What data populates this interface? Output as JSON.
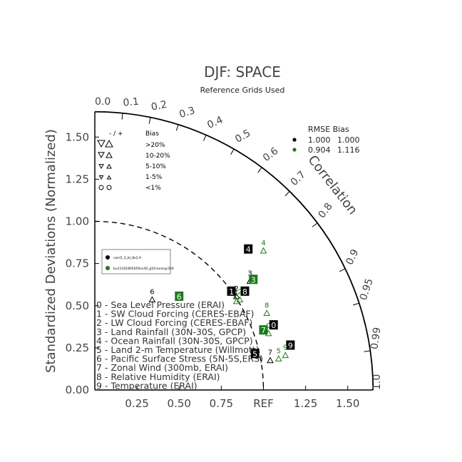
{
  "chart_data": {
    "type": "taylor-diagram",
    "title": "DJF: SPACE",
    "subtitle": "Reference Grids Used",
    "y_axis_label": "Standardized Deviations (Normalized)",
    "x_ticks": [
      "0.25",
      "0.50",
      "0.75",
      "REF",
      "1.25",
      "1.50"
    ],
    "y_ticks": [
      "0.00",
      "0.25",
      "0.50",
      "0.75",
      "1.00",
      "1.25",
      "1.50"
    ],
    "radial_max": 1.65,
    "correlation_label": "Correlation",
    "correlation_ticks": [
      "0.0",
      "0.1",
      "0.2",
      "0.3",
      "0.4",
      "0.5",
      "0.6",
      "0.7",
      "0.8",
      "0.9",
      "0.95",
      "0.99",
      "1.0"
    ],
    "bias_legend": {
      "header_signs": "- / +",
      "header_bias": "Bias",
      "rows": [
        ">20%",
        "10-20%",
        "5-10%",
        "1-5%",
        "<1%"
      ]
    },
    "rmse_bias_legend": {
      "header": "RMSE  Bias",
      "rows": [
        {
          "color": "#000000",
          "rmse": "1.000",
          "bias": "1.000"
        },
        {
          "color": "#1a7a1a",
          "rmse": "0.904",
          "bias": "1.116"
        }
      ]
    },
    "case_legend": [
      {
        "color": "#000000",
        "name": "cam5_3_bl_8x2.9"
      },
      {
        "color": "#1a7a1a",
        "name": "bu11181805050ns30_g16.tuning.004"
      }
    ],
    "variables": [
      "0 - Sea Level Pressure (ERAI)",
      "1 - SW Cloud Forcing (CERES-EBAF)",
      "2 - LW Cloud Forcing (CERES-EBAF)",
      "3 - Land Rainfall (30N-30S, GPCP)",
      "4 - Ocean Rainfall (30N-30S, GPCP)",
      "5 - Land 2-m Temperature (Willmott)",
      "6 - Pacific Surface Stress (5N-5S,ERS)",
      "7 - Zonal Wind (300mb, ERAI)",
      "8 - Relative Humidity (ERAI)",
      "9 - Temperature (ERAI)"
    ],
    "series": [
      {
        "color": "#000000",
        "points": [
          {
            "id": "0",
            "x": 1.06,
            "y": 0.38,
            "boxed": true
          },
          {
            "id": "1",
            "x": 0.81,
            "y": 0.58,
            "boxed": true
          },
          {
            "id": "2",
            "x": 0.84,
            "y": 0.58,
            "boxed": false
          },
          {
            "id": "3",
            "x": 0.92,
            "y": 0.67,
            "boxed": false
          },
          {
            "id": "4",
            "x": 0.91,
            "y": 0.83,
            "boxed": true
          },
          {
            "id": "5",
            "x": 0.95,
            "y": 0.21,
            "boxed": true
          },
          {
            "id": "6",
            "x": 0.34,
            "y": 0.56,
            "boxed": false
          },
          {
            "id": "7",
            "x": 1.04,
            "y": 0.2,
            "boxed": false
          },
          {
            "id": "8",
            "x": 0.89,
            "y": 0.58,
            "boxed": true
          },
          {
            "id": "9",
            "x": 1.16,
            "y": 0.26,
            "boxed": true
          }
        ]
      },
      {
        "color": "#1a7a1a",
        "points": [
          {
            "id": "0",
            "x": 1.03,
            "y": 0.36,
            "boxed": false
          },
          {
            "id": "1",
            "x": 0.84,
            "y": 0.55,
            "boxed": false
          },
          {
            "id": "2",
            "x": 0.86,
            "y": 0.56,
            "boxed": false
          },
          {
            "id": "3",
            "x": 0.94,
            "y": 0.65,
            "boxed": true
          },
          {
            "id": "4",
            "x": 1.0,
            "y": 0.85,
            "boxed": false
          },
          {
            "id": "5",
            "x": 1.09,
            "y": 0.21,
            "boxed": false
          },
          {
            "id": "6",
            "x": 0.5,
            "y": 0.55,
            "boxed": true
          },
          {
            "id": "7",
            "x": 1.0,
            "y": 0.35,
            "boxed": true
          },
          {
            "id": "8",
            "x": 1.02,
            "y": 0.48,
            "boxed": false
          },
          {
            "id": "9",
            "x": 1.13,
            "y": 0.23,
            "boxed": false
          }
        ]
      }
    ]
  }
}
